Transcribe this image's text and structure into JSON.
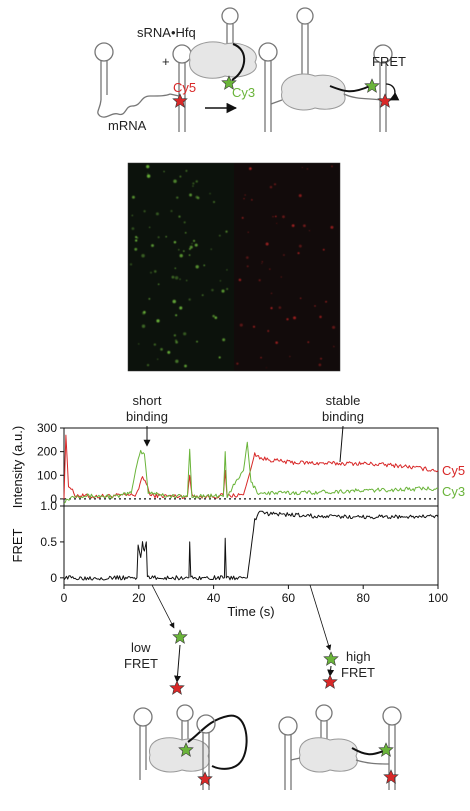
{
  "labels": {
    "srna_hfq": "sRNA•Hfq",
    "plus": "+",
    "cy5": "Cy5",
    "cy3": "Cy3",
    "mrna": "mRNA",
    "fret_top": "FRET",
    "short_binding": "short\nbinding",
    "stable_binding": "stable\nbinding",
    "low_fret": "low\nFRET",
    "high_fret": "high\nFRET"
  },
  "colors": {
    "cy5": "#d82828",
    "cy3": "#6ab43a",
    "fret": "#111111",
    "protein": "#e6e6e6",
    "image_bg": "#0b0b0b"
  },
  "chart_data": [
    {
      "type": "line",
      "xlabel": "",
      "ylabel": "Intensity (a.u.)",
      "xlim": [
        0,
        100
      ],
      "ylim": [
        -30,
        300
      ],
      "yticks": [
        0,
        100,
        200,
        300
      ],
      "legend": "right",
      "baseline": 0,
      "series": [
        {
          "name": "Cy5",
          "color": "#d82828",
          "points": [
            [
              0,
              0
            ],
            [
              0.5,
              270
            ],
            [
              1.2,
              60
            ],
            [
              3,
              15
            ],
            [
              8,
              10
            ],
            [
              14,
              14
            ],
            [
              19,
              16
            ],
            [
              20,
              45
            ],
            [
              21,
              90
            ],
            [
              22,
              70
            ],
            [
              23,
              15
            ],
            [
              28,
              12
            ],
            [
              33,
              10
            ],
            [
              33.6,
              100
            ],
            [
              34.2,
              12
            ],
            [
              40,
              10
            ],
            [
              42.6,
              15
            ],
            [
              43.1,
              120
            ],
            [
              43.6,
              12
            ],
            [
              48,
              18
            ],
            [
              49.5,
              100
            ],
            [
              51,
              190
            ],
            [
              53,
              170
            ],
            [
              60,
              155
            ],
            [
              70,
              150
            ],
            [
              80,
              150
            ],
            [
              90,
              140
            ],
            [
              100,
              120
            ]
          ]
        },
        {
          "name": "Cy3",
          "color": "#6ab43a",
          "points": [
            [
              0,
              -10
            ],
            [
              3,
              15
            ],
            [
              8,
              12
            ],
            [
              14,
              10
            ],
            [
              18,
              25
            ],
            [
              19.5,
              150
            ],
            [
              20.5,
              200
            ],
            [
              21.5,
              190
            ],
            [
              22.5,
              30
            ],
            [
              28,
              12
            ],
            [
              33,
              10
            ],
            [
              33.6,
              210
            ],
            [
              34.2,
              12
            ],
            [
              40,
              12
            ],
            [
              42.6,
              10
            ],
            [
              43.1,
              200
            ],
            [
              43.6,
              12
            ],
            [
              48,
              120
            ],
            [
              49,
              240
            ],
            [
              50,
              70
            ],
            [
              52,
              25
            ],
            [
              60,
              25
            ],
            [
              70,
              30
            ],
            [
              80,
              35
            ],
            [
              90,
              40
            ],
            [
              100,
              45
            ]
          ]
        }
      ]
    },
    {
      "type": "line",
      "xlabel": "Time (s)",
      "ylabel": "FRET",
      "xlim": [
        0,
        100
      ],
      "ylim": [
        -0.1,
        1.0
      ],
      "xticks": [
        0,
        20,
        40,
        60,
        80,
        100
      ],
      "yticks": [
        0,
        0.5,
        1.0
      ],
      "ytick_labels": [
        "0",
        "0.5",
        "1.0"
      ],
      "series": [
        {
          "name": "",
          "color": "#111111",
          "points": [
            [
              0,
              0
            ],
            [
              19.5,
              0
            ],
            [
              19.8,
              0.45
            ],
            [
              20.5,
              0.3
            ],
            [
              21,
              0.5
            ],
            [
              21.5,
              0.35
            ],
            [
              22,
              0.5
            ],
            [
              22.3,
              0
            ],
            [
              33.4,
              0
            ],
            [
              33.6,
              0.5
            ],
            [
              33.9,
              0
            ],
            [
              42.9,
              0
            ],
            [
              43.1,
              0.55
            ],
            [
              43.4,
              0
            ],
            [
              49,
              0
            ],
            [
              50,
              0.4
            ],
            [
              51,
              0.8
            ],
            [
              52,
              0.9
            ],
            [
              60,
              0.88
            ],
            [
              70,
              0.85
            ],
            [
              80,
              0.85
            ],
            [
              90,
              0.85
            ],
            [
              100,
              0.85
            ]
          ]
        }
      ]
    }
  ]
}
